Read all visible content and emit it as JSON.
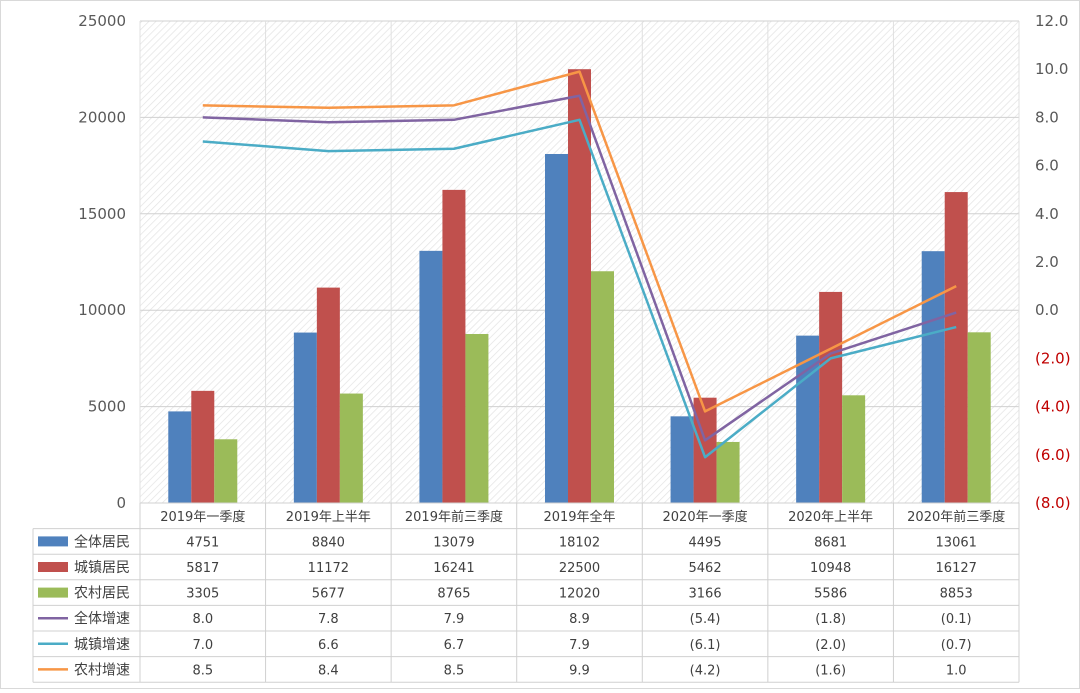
{
  "chart_data": {
    "type": "bar",
    "combo": "bar+line, dual y-axis, with data table below",
    "categories": [
      "2019年一季度",
      "2019年上半年",
      "2019年前三季度",
      "2019年全年",
      "2020年一季度",
      "2020年上半年",
      "2020年前三季度"
    ],
    "bar_series": [
      {
        "name": "全体居民",
        "color": "#4F81BD",
        "values": [
          4751,
          8840,
          13079,
          18102,
          4495,
          8681,
          13061
        ]
      },
      {
        "name": "城镇居民",
        "color": "#C0504D",
        "values": [
          5817,
          11172,
          16241,
          22500,
          5462,
          10948,
          16127
        ]
      },
      {
        "name": "农村居民",
        "color": "#9BBB59",
        "values": [
          3305,
          5677,
          8765,
          12020,
          3166,
          5586,
          8853
        ]
      }
    ],
    "line_series": [
      {
        "name": "全体增速",
        "color": "#8064A2",
        "values": [
          8.0,
          7.8,
          7.9,
          8.9,
          -5.4,
          -1.8,
          -0.1
        ],
        "labels": [
          "8.0",
          "7.8",
          "7.9",
          "8.9",
          "(5.4)",
          "(1.8)",
          "(0.1)"
        ]
      },
      {
        "name": "城镇增速",
        "color": "#4BACC6",
        "values": [
          7.0,
          6.6,
          6.7,
          7.9,
          -6.1,
          -2.0,
          -0.7
        ],
        "labels": [
          "7.0",
          "6.6",
          "6.7",
          "7.9",
          "(6.1)",
          "(2.0)",
          "(0.7)"
        ]
      },
      {
        "name": "农村增速",
        "color": "#F79646",
        "values": [
          8.5,
          8.4,
          8.5,
          9.9,
          -4.2,
          -1.6,
          1.0
        ],
        "labels": [
          "8.5",
          "8.4",
          "8.5",
          "9.9",
          "(4.2)",
          "(1.6)",
          "1.0"
        ]
      }
    ],
    "y_left": {
      "min": 0,
      "max": 25000,
      "ticks": [
        "0",
        "5000",
        "10000",
        "15000",
        "20000",
        "25000"
      ]
    },
    "y_right": {
      "min": -8,
      "max": 12,
      "ticks": [
        "(8.0)",
        "(6.0)",
        "(4.0)",
        "(2.0)",
        "0.0",
        "2.0",
        "4.0",
        "6.0",
        "8.0",
        "10.0",
        "12.0"
      ],
      "negative_color": "#C00000"
    },
    "grid": true,
    "plot_background": "hatched",
    "legend": "data-table"
  }
}
